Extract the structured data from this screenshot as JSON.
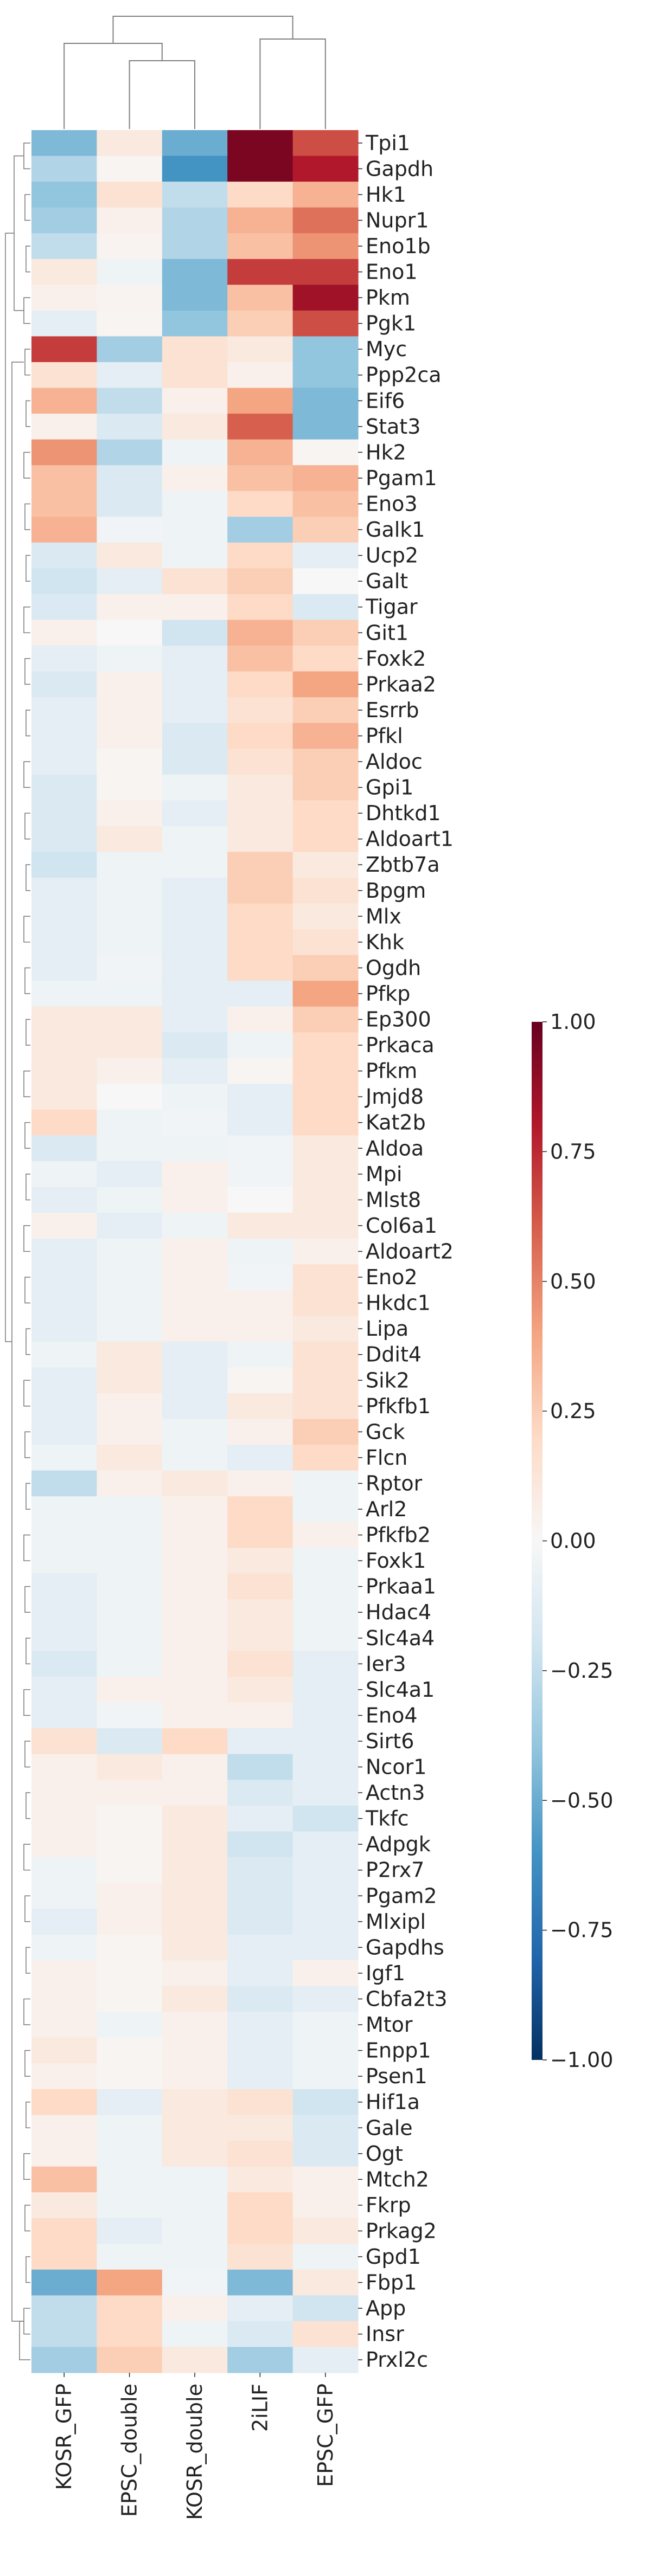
{
  "chart_data": {
    "type": "heatmap",
    "columns": [
      "KOSR_GFP",
      "EPSC_double",
      "KOSR_double",
      "2iLIF",
      "EPSC_GFP"
    ],
    "rows": [
      "Tpi1",
      "Gapdh",
      "Hk1",
      "Nupr1",
      "Eno1b",
      "Eno1",
      "Pkm",
      "Pgk1",
      "Myc",
      "Ppp2ca",
      "Eif6",
      "Stat3",
      "Hk2",
      "Pgam1",
      "Eno3",
      "Galk1",
      "Ucp2",
      "Galt",
      "Tigar",
      "Git1",
      "Foxk2",
      "Prkaa2",
      "Esrrb",
      "Pfkl",
      "Aldoc",
      "Gpi1",
      "Dhtkd1",
      "Aldoart1",
      "Zbtb7a",
      "Bpgm",
      "Mlx",
      "Khk",
      "Ogdh",
      "Pfkp",
      "Ep300",
      "Prkaca",
      "Pfkm",
      "Jmjd8",
      "Kat2b",
      "Aldoa",
      "Mpi",
      "Mlst8",
      "Col6a1",
      "Aldoart2",
      "Eno2",
      "Hkdc1",
      "Lipa",
      "Ddit4",
      "Sik2",
      "Pfkfb1",
      "Gck",
      "Flcn",
      "Rptor",
      "Arl2",
      "Pfkfb2",
      "Foxk1",
      "Prkaa1",
      "Hdac4",
      "Slc4a4",
      "Ier3",
      "Slc4a1",
      "Eno4",
      "Sirt6",
      "Ncor1",
      "Actn3",
      "Tkfc",
      "Adpgk",
      "P2rx7",
      "Pgam2",
      "Mlxipl",
      "Gapdhs",
      "Igf1",
      "Cbfa2t3",
      "Mtor",
      "Enpp1",
      "Psen1",
      "Hif1a",
      "Gale",
      "Ogt",
      "Mtch2",
      "Fkrp",
      "Prkag2",
      "Gpd1",
      "Fbp1",
      "App",
      "Insr",
      "Prxl2c"
    ],
    "values": [
      [
        -0.45,
        0.1,
        -0.5,
        0.95,
        0.65
      ],
      [
        -0.3,
        0.02,
        -0.6,
        0.95,
        0.8
      ],
      [
        -0.4,
        0.15,
        -0.25,
        0.2,
        0.35
      ],
      [
        -0.35,
        0.05,
        -0.3,
        0.35,
        0.55
      ],
      [
        -0.25,
        0.03,
        -0.3,
        0.3,
        0.45
      ],
      [
        0.1,
        -0.05,
        -0.45,
        0.7,
        0.7
      ],
      [
        0.05,
        0.03,
        -0.45,
        0.3,
        0.85
      ],
      [
        -0.1,
        0.02,
        -0.4,
        0.25,
        0.65
      ],
      [
        0.7,
        -0.35,
        0.15,
        0.1,
        -0.4
      ],
      [
        0.15,
        -0.1,
        0.15,
        0.05,
        -0.4
      ],
      [
        0.35,
        -0.25,
        0.05,
        0.4,
        -0.45
      ],
      [
        0.05,
        -0.15,
        0.1,
        0.6,
        -0.45
      ],
      [
        0.45,
        -0.3,
        -0.05,
        0.35,
        0.02
      ],
      [
        0.3,
        -0.15,
        0.05,
        0.3,
        0.35
      ],
      [
        0.3,
        -0.15,
        -0.05,
        0.2,
        0.3
      ],
      [
        0.35,
        -0.03,
        -0.05,
        -0.35,
        0.25
      ],
      [
        -0.15,
        0.1,
        -0.05,
        0.2,
        -0.1
      ],
      [
        -0.2,
        -0.1,
        0.15,
        0.25,
        0.0
      ],
      [
        -0.15,
        0.05,
        0.05,
        0.2,
        -0.15
      ],
      [
        0.05,
        0.0,
        -0.2,
        0.35,
        0.25
      ],
      [
        -0.1,
        -0.05,
        -0.1,
        0.3,
        0.2
      ],
      [
        -0.15,
        0.05,
        -0.1,
        0.2,
        0.4
      ],
      [
        -0.1,
        0.05,
        -0.1,
        0.15,
        0.25
      ],
      [
        -0.1,
        0.05,
        -0.15,
        0.2,
        0.35
      ],
      [
        -0.1,
        0.02,
        -0.15,
        0.15,
        0.25
      ],
      [
        -0.15,
        0.02,
        -0.05,
        0.1,
        0.25
      ],
      [
        -0.15,
        0.05,
        -0.1,
        0.1,
        0.2
      ],
      [
        -0.15,
        0.1,
        -0.05,
        0.1,
        0.2
      ],
      [
        -0.2,
        -0.05,
        -0.05,
        0.25,
        0.1
      ],
      [
        -0.1,
        -0.05,
        -0.1,
        0.25,
        0.15
      ],
      [
        -0.1,
        -0.05,
        -0.1,
        0.2,
        0.1
      ],
      [
        -0.1,
        -0.05,
        -0.1,
        0.2,
        0.15
      ],
      [
        -0.1,
        -0.03,
        -0.1,
        0.2,
        0.25
      ],
      [
        -0.05,
        -0.05,
        -0.1,
        -0.1,
        0.4
      ],
      [
        0.1,
        0.1,
        -0.1,
        0.05,
        0.25
      ],
      [
        0.1,
        0.1,
        -0.15,
        -0.05,
        0.2
      ],
      [
        0.1,
        0.05,
        -0.1,
        0.02,
        0.2
      ],
      [
        0.1,
        0.0,
        -0.05,
        -0.1,
        0.2
      ],
      [
        0.2,
        -0.05,
        -0.03,
        -0.1,
        0.2
      ],
      [
        -0.15,
        -0.05,
        -0.05,
        -0.03,
        0.1
      ],
      [
        -0.05,
        -0.1,
        0.05,
        -0.03,
        0.1
      ],
      [
        -0.1,
        -0.05,
        0.05,
        0.0,
        0.1
      ],
      [
        0.05,
        -0.1,
        -0.05,
        0.1,
        0.1
      ],
      [
        -0.1,
        -0.05,
        0.05,
        -0.05,
        0.05
      ],
      [
        -0.1,
        -0.05,
        0.05,
        -0.03,
        0.15
      ],
      [
        -0.1,
        -0.05,
        0.05,
        0.05,
        0.15
      ],
      [
        -0.1,
        -0.05,
        0.05,
        0.05,
        0.1
      ],
      [
        -0.05,
        0.1,
        -0.1,
        -0.05,
        0.15
      ],
      [
        -0.1,
        0.1,
        -0.1,
        0.02,
        0.15
      ],
      [
        -0.1,
        0.05,
        -0.1,
        0.1,
        0.15
      ],
      [
        -0.1,
        0.05,
        -0.05,
        0.05,
        0.25
      ],
      [
        -0.05,
        0.1,
        -0.05,
        -0.1,
        0.2
      ],
      [
        -0.25,
        0.05,
        0.1,
        0.05,
        -0.05
      ],
      [
        -0.05,
        -0.05,
        0.05,
        0.2,
        -0.05
      ],
      [
        -0.05,
        -0.05,
        0.05,
        0.2,
        0.05
      ],
      [
        -0.05,
        -0.05,
        0.05,
        0.1,
        -0.05
      ],
      [
        -0.1,
        -0.05,
        0.05,
        0.15,
        -0.05
      ],
      [
        -0.1,
        -0.05,
        0.05,
        0.1,
        -0.05
      ],
      [
        -0.1,
        -0.05,
        0.05,
        0.1,
        -0.05
      ],
      [
        -0.15,
        -0.05,
        0.05,
        0.15,
        -0.1
      ],
      [
        -0.1,
        0.05,
        0.05,
        0.1,
        -0.1
      ],
      [
        -0.1,
        -0.03,
        0.05,
        0.05,
        -0.1
      ],
      [
        0.15,
        -0.15,
        0.2,
        -0.1,
        -0.1
      ],
      [
        0.05,
        0.1,
        0.05,
        -0.25,
        -0.1
      ],
      [
        0.05,
        0.05,
        0.05,
        -0.15,
        -0.1
      ],
      [
        0.05,
        0.02,
        0.1,
        -0.1,
        -0.2
      ],
      [
        0.05,
        0.02,
        0.1,
        -0.2,
        -0.1
      ],
      [
        -0.05,
        0.02,
        0.1,
        -0.15,
        -0.1
      ],
      [
        -0.05,
        0.05,
        0.1,
        -0.15,
        -0.1
      ],
      [
        -0.1,
        0.05,
        0.1,
        -0.15,
        -0.1
      ],
      [
        -0.05,
        0.02,
        0.1,
        -0.1,
        -0.1
      ],
      [
        0.05,
        0.02,
        0.05,
        -0.1,
        0.05
      ],
      [
        0.05,
        0.02,
        0.1,
        -0.15,
        -0.1
      ],
      [
        0.05,
        -0.05,
        0.05,
        -0.1,
        -0.05
      ],
      [
        0.1,
        0.02,
        0.05,
        -0.1,
        -0.05
      ],
      [
        0.05,
        0.02,
        0.05,
        -0.1,
        -0.05
      ],
      [
        0.2,
        -0.1,
        0.1,
        0.15,
        -0.2
      ],
      [
        0.05,
        -0.05,
        0.1,
        0.1,
        -0.15
      ],
      [
        0.05,
        -0.05,
        0.1,
        0.15,
        -0.15
      ],
      [
        0.3,
        -0.05,
        -0.05,
        0.1,
        0.05
      ],
      [
        0.1,
        -0.05,
        -0.05,
        0.2,
        0.05
      ],
      [
        0.2,
        -0.1,
        -0.05,
        0.2,
        0.1
      ],
      [
        0.2,
        -0.05,
        -0.05,
        0.15,
        -0.05
      ],
      [
        -0.5,
        0.4,
        -0.03,
        -0.45,
        0.1
      ],
      [
        -0.25,
        0.2,
        0.05,
        -0.1,
        -0.2
      ],
      [
        -0.25,
        0.2,
        -0.05,
        -0.15,
        0.15
      ],
      [
        -0.35,
        0.25,
        0.1,
        -0.35,
        -0.1
      ]
    ],
    "colorbar": {
      "vmin": -1.0,
      "vmax": 1.0,
      "ticks": [
        "−1.00",
        "−0.75",
        "−0.50",
        "−0.25",
        "0.00",
        "0.25",
        "0.50",
        "0.75",
        "1.00"
      ],
      "colormap": "RdBu_r"
    },
    "dendrogram": {
      "columns": true,
      "rows": true,
      "color": "#808080"
    },
    "title": "",
    "xlabel": "",
    "ylabel": ""
  }
}
